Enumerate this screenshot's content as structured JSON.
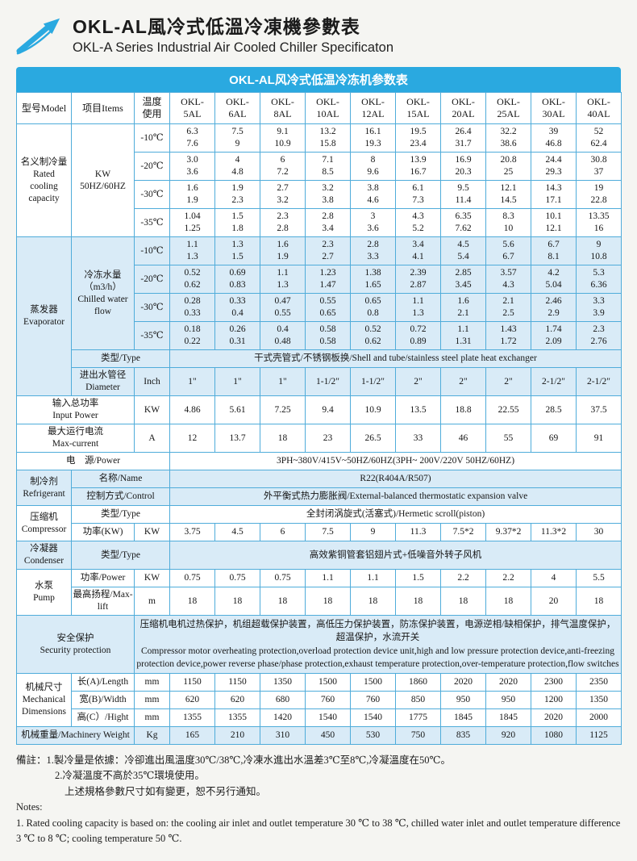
{
  "page": {
    "title_zh": "OKL-AL風冷式低溫冷凍機參數表",
    "title_en": "OKL-A Series Industrial Air Cooled Chiller Specificaton",
    "banner": "OKL-AL风冷式低温冷冻机参数表"
  },
  "colors": {
    "accent": "#2aa9e0",
    "border": "#4facda",
    "shade": "#d9ebf7"
  },
  "notes": [
    "備註：1.製冷量是依據：冷卻進出風溫度30℃/38℃,冷凍水進出水溫差3℃至8℃,冷凝溫度在50℃。",
    "2.冷凝溫度不高於35℃環境使用。",
    "上述規格參數尺寸如有變更，恕不另行通知。",
    "Notes:",
    "1. Rated cooling capacity is based on: the cooling air inlet and outlet temperature 30 ℃ to 38 ℃, chilled water inlet and outlet temperature difference 3 ℃ to 8 ℃; cooling temperature 50 ℃."
  ],
  "table": {
    "rows": [
      {
        "h": true,
        "cells": [
          {
            "l": [
              "型号Model"
            ],
            "n": "header-model"
          },
          {
            "l": [
              "项目Items"
            ],
            "n": "header-items"
          },
          {
            "l": [
              "温度",
              "使用"
            ],
            "n": "header-temperature"
          },
          {
            "l": [
              "OKL-",
              "5AL"
            ],
            "n": "header-okl-5al"
          },
          {
            "l": [
              "OKL-",
              "6AL"
            ],
            "n": "header-okl-6al"
          },
          {
            "l": [
              "OKL-",
              "8AL"
            ],
            "n": "header-okl-8al"
          },
          {
            "l": [
              "OKL-",
              "10AL"
            ],
            "n": "header-okl-10al"
          },
          {
            "l": [
              "OKL-",
              "12AL"
            ],
            "n": "header-okl-12al"
          },
          {
            "l": [
              "OKL-",
              "15AL"
            ],
            "n": "header-okl-15al"
          },
          {
            "l": [
              "OKL-",
              "20AL"
            ],
            "n": "header-okl-20al"
          },
          {
            "l": [
              "OKL-",
              "25AL"
            ],
            "n": "header-okl-25al"
          },
          {
            "l": [
              "OKL-",
              "30AL"
            ],
            "n": "header-okl-30al"
          },
          {
            "l": [
              "OKL-",
              "40AL"
            ],
            "n": "header-okl-40al"
          }
        ]
      },
      {
        "cells": [
          {
            "l": [
              "名义制冷量",
              "Rated",
              "cooling",
              "capacity"
            ],
            "rs": 4,
            "c": "lbl",
            "n": "section-rated-cooling-capacity"
          },
          {
            "l": [
              "KW",
              "50HZ/60HZ"
            ],
            "rs": 4,
            "c": "lbl",
            "n": "rated-cooling-unit"
          },
          {
            "l": [
              "-10℃"
            ],
            "c": "lbl",
            "n": "temp-cell"
          },
          [
            "6.3",
            "7.6"
          ],
          [
            "7.5",
            "9"
          ],
          [
            "9.1",
            "10.9"
          ],
          [
            "13.2",
            "15.8"
          ],
          [
            "16.1",
            "19.3"
          ],
          [
            "19.5",
            "23.4"
          ],
          [
            "26.4",
            "31.7"
          ],
          [
            "32.2",
            "38.6"
          ],
          [
            "39",
            "46.8"
          ],
          [
            "52",
            "62.4"
          ]
        ]
      },
      {
        "cells": [
          {
            "l": [
              "-20℃"
            ],
            "c": "lbl",
            "n": "temp-cell"
          },
          [
            "3.0",
            "3.6"
          ],
          [
            "4",
            "4.8"
          ],
          [
            "6",
            "7.2"
          ],
          [
            "7.1",
            "8.5"
          ],
          [
            "8",
            "9.6"
          ],
          [
            "13.9",
            "16.7"
          ],
          [
            "16.9",
            "20.3"
          ],
          [
            "20.8",
            "25"
          ],
          [
            "24.4",
            "29.3"
          ],
          [
            "30.8",
            "37"
          ]
        ]
      },
      {
        "cells": [
          {
            "l": [
              "-30℃"
            ],
            "c": "lbl",
            "n": "temp-cell"
          },
          [
            "1.6",
            "1.9"
          ],
          [
            "1.9",
            "2.3"
          ],
          [
            "2.7",
            "3.2"
          ],
          [
            "3.2",
            "3.8"
          ],
          [
            "3.8",
            "4.6"
          ],
          [
            "6.1",
            "7.3"
          ],
          [
            "9.5",
            "11.4"
          ],
          [
            "12.1",
            "14.5"
          ],
          [
            "14.3",
            "17.1"
          ],
          [
            "19",
            "22.8"
          ]
        ]
      },
      {
        "cells": [
          {
            "l": [
              "-35℃"
            ],
            "c": "lbl",
            "n": "temp-cell"
          },
          [
            "1.04",
            "1.25"
          ],
          [
            "1.5",
            "1.8"
          ],
          [
            "2.3",
            "2.8"
          ],
          [
            "2.8",
            "3.4"
          ],
          [
            "3",
            "3.6"
          ],
          [
            "4.3",
            "5.2"
          ],
          [
            "6.35",
            "7.62"
          ],
          [
            "8.3",
            "10"
          ],
          [
            "10.1",
            "12.1"
          ],
          [
            "13.35",
            "16"
          ]
        ]
      },
      {
        "sh": true,
        "cells": [
          {
            "l": [
              "蒸发器",
              "Evaporator"
            ],
            "rs": 6,
            "c": "lbl",
            "n": "section-evaporator"
          },
          {
            "l": [
              "冷冻水量（m3/h）",
              "Chilled water flow"
            ],
            "rs": 4,
            "c": "lbl",
            "n": "chilled-water-flow-label"
          },
          {
            "l": [
              "-10℃"
            ],
            "c": "lbl",
            "n": "temp-cell"
          },
          [
            "1.1",
            "1.3"
          ],
          [
            "1.3",
            "1.5"
          ],
          [
            "1.6",
            "1.9"
          ],
          [
            "2.3",
            "2.7"
          ],
          [
            "2.8",
            "3.3"
          ],
          [
            "3.4",
            "4.1"
          ],
          [
            "4.5",
            "5.4"
          ],
          [
            "5.6",
            "6.7"
          ],
          [
            "6.7",
            "8.1"
          ],
          [
            "9",
            "10.8"
          ]
        ]
      },
      {
        "sh": true,
        "cells": [
          {
            "l": [
              "-20℃"
            ],
            "c": "lbl",
            "n": "temp-cell"
          },
          [
            "0.52",
            "0.62"
          ],
          [
            "0.69",
            "0.83"
          ],
          [
            "1.1",
            "1.3"
          ],
          [
            "1.23",
            "1.47"
          ],
          [
            "1.38",
            "1.65"
          ],
          [
            "2.39",
            "2.87"
          ],
          [
            "2.85",
            "3.45"
          ],
          [
            "3.57",
            "4.3"
          ],
          [
            "4.2",
            "5.04"
          ],
          [
            "5.3",
            "6.36"
          ]
        ]
      },
      {
        "sh": true,
        "cells": [
          {
            "l": [
              "-30℃"
            ],
            "c": "lbl",
            "n": "temp-cell"
          },
          [
            "0.28",
            "0.33"
          ],
          [
            "0.33",
            "0.4"
          ],
          [
            "0.47",
            "0.55"
          ],
          [
            "0.55",
            "0.65"
          ],
          [
            "0.65",
            "0.8"
          ],
          [
            "1.1",
            "1.3"
          ],
          [
            "1.6",
            "2.1"
          ],
          [
            "2.1",
            "2.5"
          ],
          [
            "2.46",
            "2.9"
          ],
          [
            "3.3",
            "3.9"
          ]
        ]
      },
      {
        "sh": true,
        "cells": [
          {
            "l": [
              "-35℃"
            ],
            "c": "lbl",
            "n": "temp-cell"
          },
          [
            "0.18",
            "0.22"
          ],
          [
            "0.26",
            "0.31"
          ],
          [
            "0.4",
            "0.48"
          ],
          [
            "0.58",
            "0.58"
          ],
          [
            "0.52",
            "0.62"
          ],
          [
            "0.72",
            "0.89"
          ],
          [
            "1.1",
            "1.31"
          ],
          [
            "1.43",
            "1.72"
          ],
          [
            "1.74",
            "2.09"
          ],
          [
            "2.3",
            "2.76"
          ]
        ]
      },
      {
        "sh": true,
        "cells": [
          {
            "l": [
              "类型/Type"
            ],
            "cs": 2,
            "c": "lbl",
            "n": "evaporator-type-label"
          },
          {
            "l": [
              "干式壳管式/不锈钢板换/Shell and tube/stainless steel plate heat exchanger"
            ],
            "cs": 10,
            "n": "evaporator-type-value"
          }
        ]
      },
      {
        "sh": true,
        "cells": [
          {
            "l": [
              "进出水管径",
              "Diameter"
            ],
            "c": "lbl",
            "n": "diameter-label"
          },
          {
            "l": [
              "Inch"
            ],
            "n": "diameter-unit"
          },
          "1\"",
          "1\"",
          "1\"",
          "1-1/2\"",
          "1-1/2\"",
          "2\"",
          "2\"",
          "2\"",
          "2-1/2\"",
          "2-1/2\""
        ]
      },
      {
        "cells": [
          {
            "l": [
              "输入总功率",
              "Input Power"
            ],
            "cs": 2,
            "c": "lbl",
            "n": "input-power-label"
          },
          {
            "l": [
              "KW"
            ],
            "n": "input-power-unit"
          },
          "4.86",
          "5.61",
          "7.25",
          "9.4",
          "10.9",
          "13.5",
          "18.8",
          "22.55",
          "28.5",
          "37.5"
        ]
      },
      {
        "cells": [
          {
            "l": [
              "最大运行电流",
              "Max-current"
            ],
            "cs": 2,
            "c": "lbl",
            "n": "max-current-label"
          },
          {
            "l": [
              "A"
            ],
            "n": "max-current-unit"
          },
          "12",
          "13.7",
          "18",
          "23",
          "26.5",
          "33",
          "46",
          "55",
          "69",
          "91"
        ]
      },
      {
        "cells": [
          {
            "l": [
              "电　源/Power"
            ],
            "cs": 3,
            "c": "lbl",
            "n": "power-supply-label"
          },
          {
            "l": [
              "3PH~380V/415V~50HZ/60HZ(3PH~ 200V/220V  50HZ/60HZ)"
            ],
            "cs": 10,
            "n": "power-supply-value"
          }
        ]
      },
      {
        "sh": true,
        "cells": [
          {
            "l": [
              "制冷剂",
              "Refrigerant"
            ],
            "rs": 2,
            "c": "lbl",
            "n": "section-refrigerant"
          },
          {
            "l": [
              "名称/Name"
            ],
            "cs": 2,
            "c": "lbl",
            "n": "refrigerant-name-label"
          },
          {
            "l": [
              "R22(R404A/R507)"
            ],
            "cs": 10,
            "n": "refrigerant-name-value"
          }
        ]
      },
      {
        "sh": true,
        "cells": [
          {
            "l": [
              "控制方式/Control"
            ],
            "cs": 2,
            "c": "lbl",
            "n": "refrigerant-control-label"
          },
          {
            "l": [
              "外平衡式热力膨胀阀/External-balanced thermostatic expansion valve"
            ],
            "cs": 10,
            "n": "refrigerant-control-value"
          }
        ]
      },
      {
        "cells": [
          {
            "l": [
              "压缩机",
              "Compressor"
            ],
            "rs": 2,
            "c": "lbl",
            "n": "section-compressor"
          },
          {
            "l": [
              "类型/Type"
            ],
            "cs": 2,
            "c": "lbl",
            "n": "compressor-type-label"
          },
          {
            "l": [
              "全封闭涡旋式(活塞式)/Hermetic scroll(piston)"
            ],
            "cs": 10,
            "n": "compressor-type-value"
          }
        ]
      },
      {
        "cells": [
          {
            "l": [
              "功率(KW)"
            ],
            "c": "lbl",
            "n": "compressor-power-label"
          },
          {
            "l": [
              "KW"
            ],
            "n": "compressor-power-unit"
          },
          "3.75",
          "4.5",
          "6",
          "7.5",
          "9",
          "11.3",
          "7.5*2",
          "9.37*2",
          "11.3*2",
          "30"
        ]
      },
      {
        "sh": true,
        "cells": [
          {
            "l": [
              "冷凝器",
              "Condenser"
            ],
            "c": "lbl",
            "n": "section-condenser"
          },
          {
            "l": [
              "类型/Type"
            ],
            "cs": 2,
            "c": "lbl",
            "n": "condenser-type-label"
          },
          {
            "l": [
              "高效紫铜管套铝翅片式+低噪音外转子风机"
            ],
            "cs": 10,
            "n": "condenser-type-value"
          }
        ]
      },
      {
        "cells": [
          {
            "l": [
              "水泵",
              "Pump"
            ],
            "rs": 2,
            "c": "lbl",
            "n": "section-pump"
          },
          {
            "l": [
              "功率/Power"
            ],
            "c": "lbl",
            "n": "pump-power-label"
          },
          {
            "l": [
              "KW"
            ],
            "n": "pump-power-unit"
          },
          "0.75",
          "0.75",
          "0.75",
          "1.1",
          "1.1",
          "1.5",
          "2.2",
          "2.2",
          "4",
          "5.5"
        ]
      },
      {
        "cells": [
          {
            "l": [
              "最高扬程/Max-lift"
            ],
            "c": "lbl",
            "n": "pump-maxlift-label"
          },
          {
            "l": [
              "m"
            ],
            "n": "pump-maxlift-unit"
          },
          "18",
          "18",
          "18",
          "18",
          "18",
          "18",
          "18",
          "18",
          "20",
          "18"
        ]
      },
      {
        "sh": true,
        "cells": [
          {
            "l": [
              "安全保护",
              "Security protection"
            ],
            "cs": 2,
            "c": "lbl",
            "n": "section-security-protection"
          },
          {
            "l": [
              "压缩机电机过热保护，机组超载保护装置，高低压力保护装置，防冻保护装置，电源逆相/缺相保护，排气温度保护，超温保护，水流开关",
              "Compressor motor overheating protection,overload protection device unit,high and low pressure protection device,anti-freezing protection device,power reverse phase/phase protection,exhaust temperature protection,over-temperature protection,flow switches"
            ],
            "cs": 11,
            "c": "left",
            "n": "security-protection-value"
          }
        ]
      },
      {
        "cells": [
          {
            "l": [
              "机械尺寸",
              "Mechanical",
              "Dimensions"
            ],
            "rs": 3,
            "c": "lbl",
            "n": "section-mechanical-dimensions"
          },
          {
            "l": [
              "长(A)/Length"
            ],
            "c": "lbl",
            "n": "length-label"
          },
          {
            "l": [
              "mm"
            ],
            "n": "length-unit"
          },
          "1150",
          "1150",
          "1350",
          "1500",
          "1500",
          "1860",
          "2020",
          "2020",
          "2300",
          "2350"
        ]
      },
      {
        "cells": [
          {
            "l": [
              "宽(B)/Width"
            ],
            "c": "lbl",
            "n": "width-label"
          },
          {
            "l": [
              "mm"
            ],
            "n": "width-unit"
          },
          "620",
          "620",
          "680",
          "760",
          "760",
          "850",
          "950",
          "950",
          "1200",
          "1350"
        ]
      },
      {
        "cells": [
          {
            "l": [
              "高(C）/Hight"
            ],
            "c": "lbl",
            "n": "height-label"
          },
          {
            "l": [
              "mm"
            ],
            "n": "height-unit"
          },
          "1355",
          "1355",
          "1420",
          "1540",
          "1540",
          "1775",
          "1845",
          "1845",
          "2020",
          "2000"
        ]
      },
      {
        "sh": true,
        "cells": [
          {
            "l": [
              "机械重量/Machinery Weight"
            ],
            "cs": 2,
            "c": "lbl",
            "n": "machinery-weight-label"
          },
          {
            "l": [
              "Kg"
            ],
            "n": "machinery-weight-unit"
          },
          "165",
          "210",
          "310",
          "450",
          "530",
          "750",
          "835",
          "920",
          "1080",
          "1125"
        ]
      }
    ]
  }
}
